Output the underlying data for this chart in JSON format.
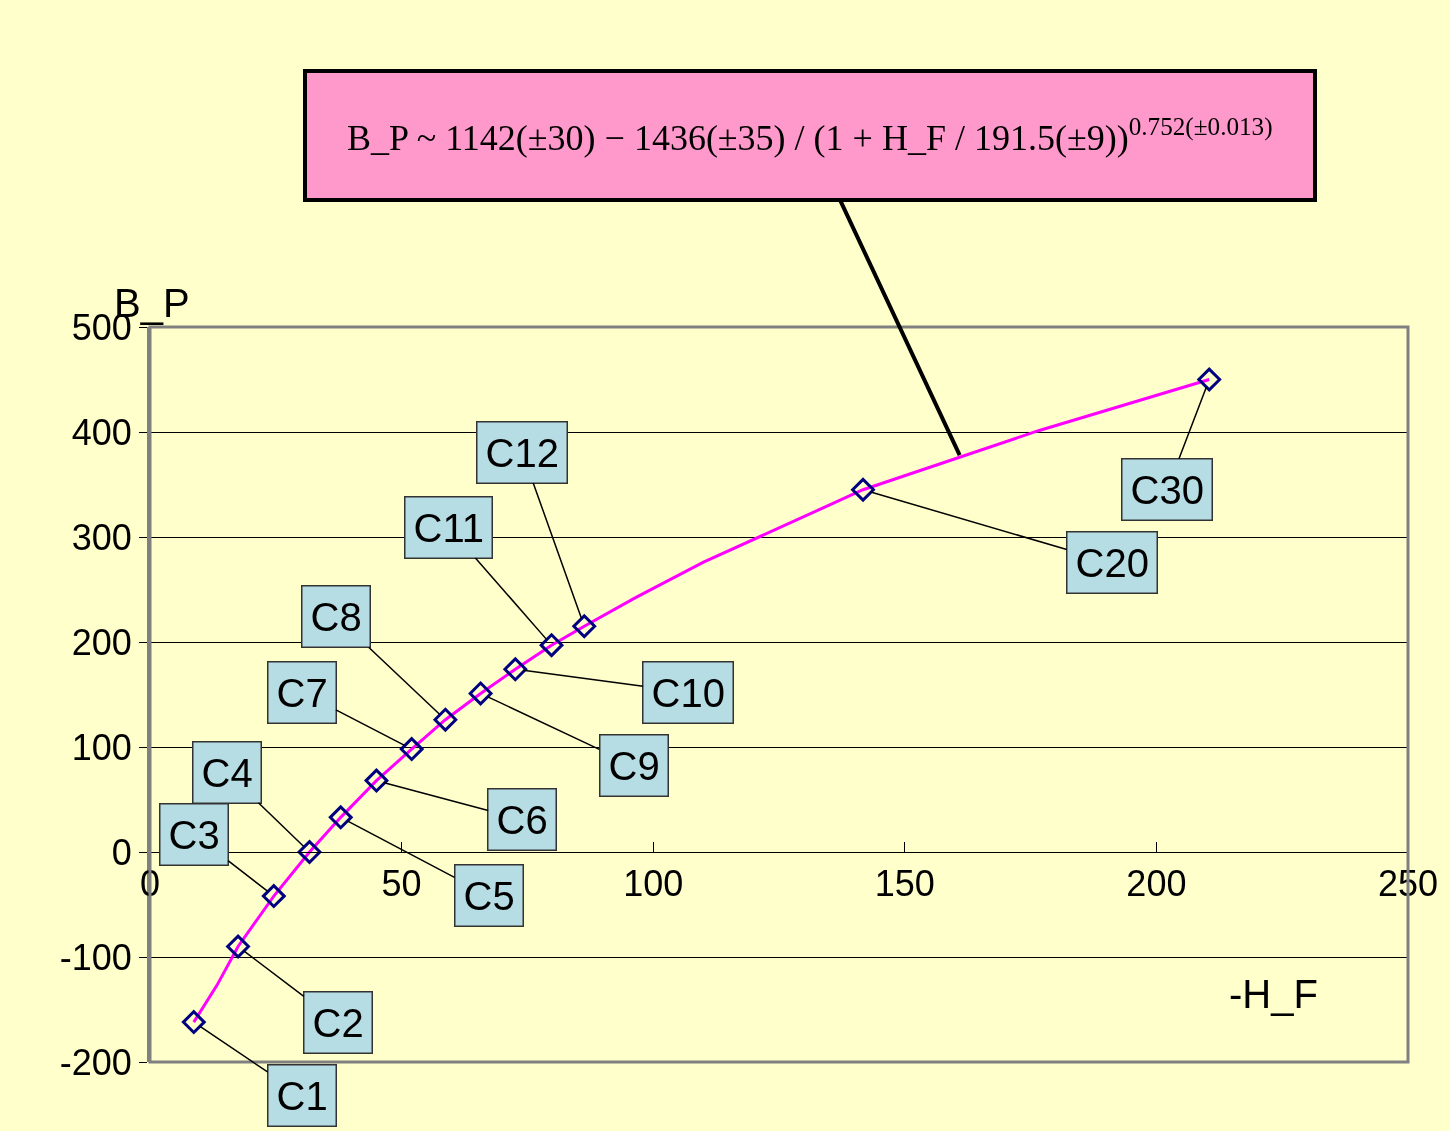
{
  "chart_data": {
    "type": "scatter",
    "xlabel": "-H_F",
    "ylabel": "B_P",
    "xlim": [
      0,
      250
    ],
    "xticks": [
      0,
      50,
      100,
      150,
      200,
      250
    ],
    "ylim": [
      -200,
      500
    ],
    "yticks": [
      -200,
      -100,
      0,
      100,
      200,
      300,
      400,
      500
    ],
    "grid": "y",
    "series": [
      {
        "type": "line",
        "color": "#ff00ff",
        "line_style": "solid",
        "marker": "none",
        "x": [
          8.7,
          13.3,
          17.5,
          24.6,
          31.7,
          37.9,
          45.0,
          52.0,
          58.7,
          65.7,
          72.6,
          79.8,
          86.3,
          96.4,
          110,
          141.7,
          176.4,
          210.5
        ],
        "values": [
          -162,
          -127,
          -90,
          -42,
          0,
          33,
          68,
          98,
          126,
          151,
          174,
          197,
          215,
          242,
          276,
          345,
          401,
          450
        ]
      },
      {
        "color": "#000080",
        "marker": "diamond",
        "x": [
          8.7,
          17.5,
          24.6,
          31.7,
          37.9,
          45.0,
          52.0,
          58.7,
          65.7,
          72.6,
          79.8,
          86.3,
          141.7,
          210.5
        ],
        "values": [
          -162,
          -90,
          -42,
          0,
          33,
          68,
          98,
          126,
          151,
          174,
          197,
          215,
          345,
          450
        ]
      }
    ],
    "annotations": [
      {
        "text": "C1",
        "x": 8.7,
        "y": -162
      },
      {
        "text": "C2",
        "x": 17.5,
        "y": -90
      },
      {
        "text": "C3",
        "x": 24.6,
        "y": -42
      },
      {
        "text": "C4",
        "x": 31.7,
        "y": 0
      },
      {
        "text": "C5",
        "x": 37.9,
        "y": 33
      },
      {
        "text": "C6",
        "x": 45.0,
        "y": 68
      },
      {
        "text": "C7",
        "x": 52.0,
        "y": 98
      },
      {
        "text": "C8",
        "x": 58.7,
        "y": 126
      },
      {
        "text": "C9",
        "x": 65.7,
        "y": 151
      },
      {
        "text": "C10",
        "x": 72.6,
        "y": 174
      },
      {
        "text": "C11",
        "x": 79.8,
        "y": 197
      },
      {
        "text": "C12",
        "x": 86.3,
        "y": 215
      },
      {
        "text": "C20",
        "x": 141.7,
        "y": 345
      },
      {
        "text": "C30",
        "x": 210.5,
        "y": 450
      },
      {
        "text": "B_P ~ 1142(±30) − 1436(±35) / (1 + H_F / 191.5(±9))$^{0.752(±0.013)}$",
        "x": 160.9,
        "y": 378
      }
    ]
  }
}
